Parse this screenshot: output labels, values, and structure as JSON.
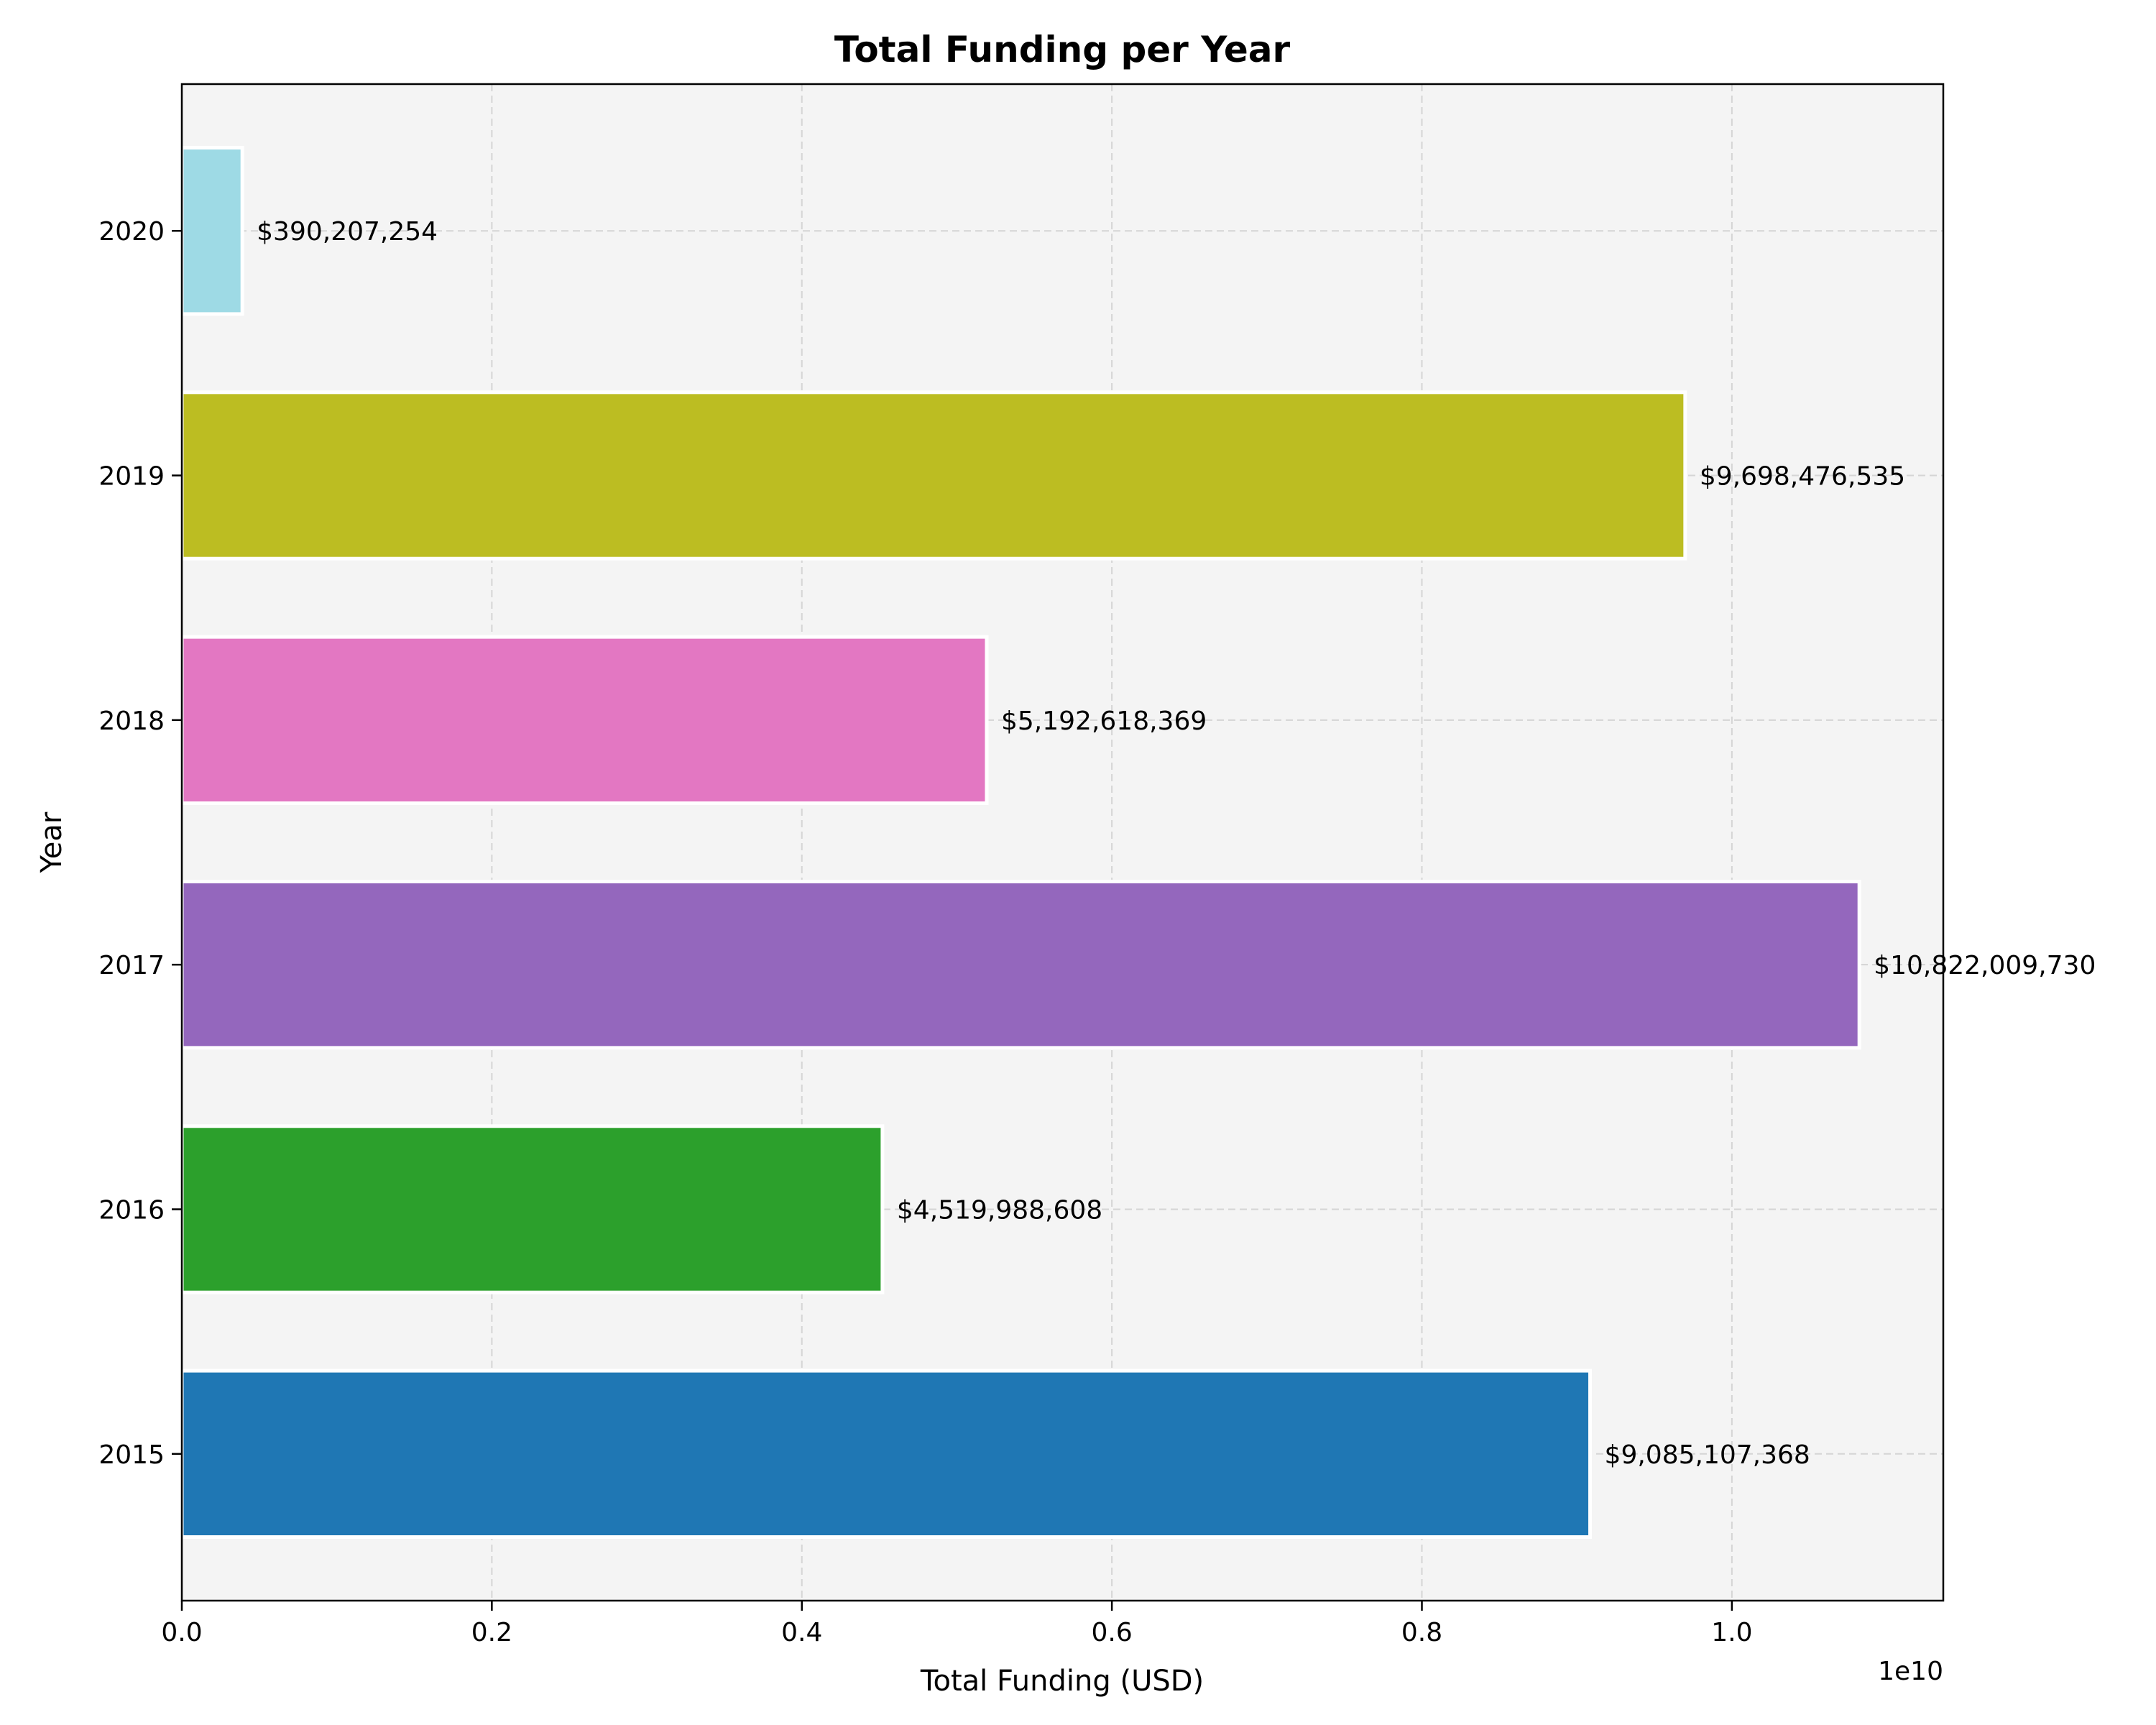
{
  "chart_data": {
    "type": "bar",
    "orientation": "horizontal",
    "title": "Total Funding per Year",
    "xlabel": "Total Funding (USD)",
    "ylabel": "Year",
    "x_offset_label": "1e10",
    "xlim": [
      0,
      11363610216
    ],
    "x_ticks": [
      0,
      2000000000,
      4000000000,
      6000000000,
      8000000000,
      10000000000
    ],
    "x_tick_labels": [
      "0.0",
      "0.2",
      "0.4",
      "0.6",
      "0.8",
      "1.0"
    ],
    "grid": true,
    "legend": "none",
    "categories": [
      "2015",
      "2016",
      "2017",
      "2018",
      "2019",
      "2020"
    ],
    "values": [
      9085107368,
      4519988608,
      10822009730,
      5192618369,
      9698476535,
      390207254
    ],
    "data_labels": [
      "$9,085,107,368",
      "$4,519,988,608",
      "$10,822,009,730",
      "$5,192,618,369",
      "$9,698,476,535",
      "$390,207,254"
    ],
    "colors": [
      "#1f77b4",
      "#2ca02c",
      "#9467bd",
      "#e377c2",
      "#bcbd22",
      "#9edae5"
    ],
    "plot_background": "#f4f4f4"
  }
}
